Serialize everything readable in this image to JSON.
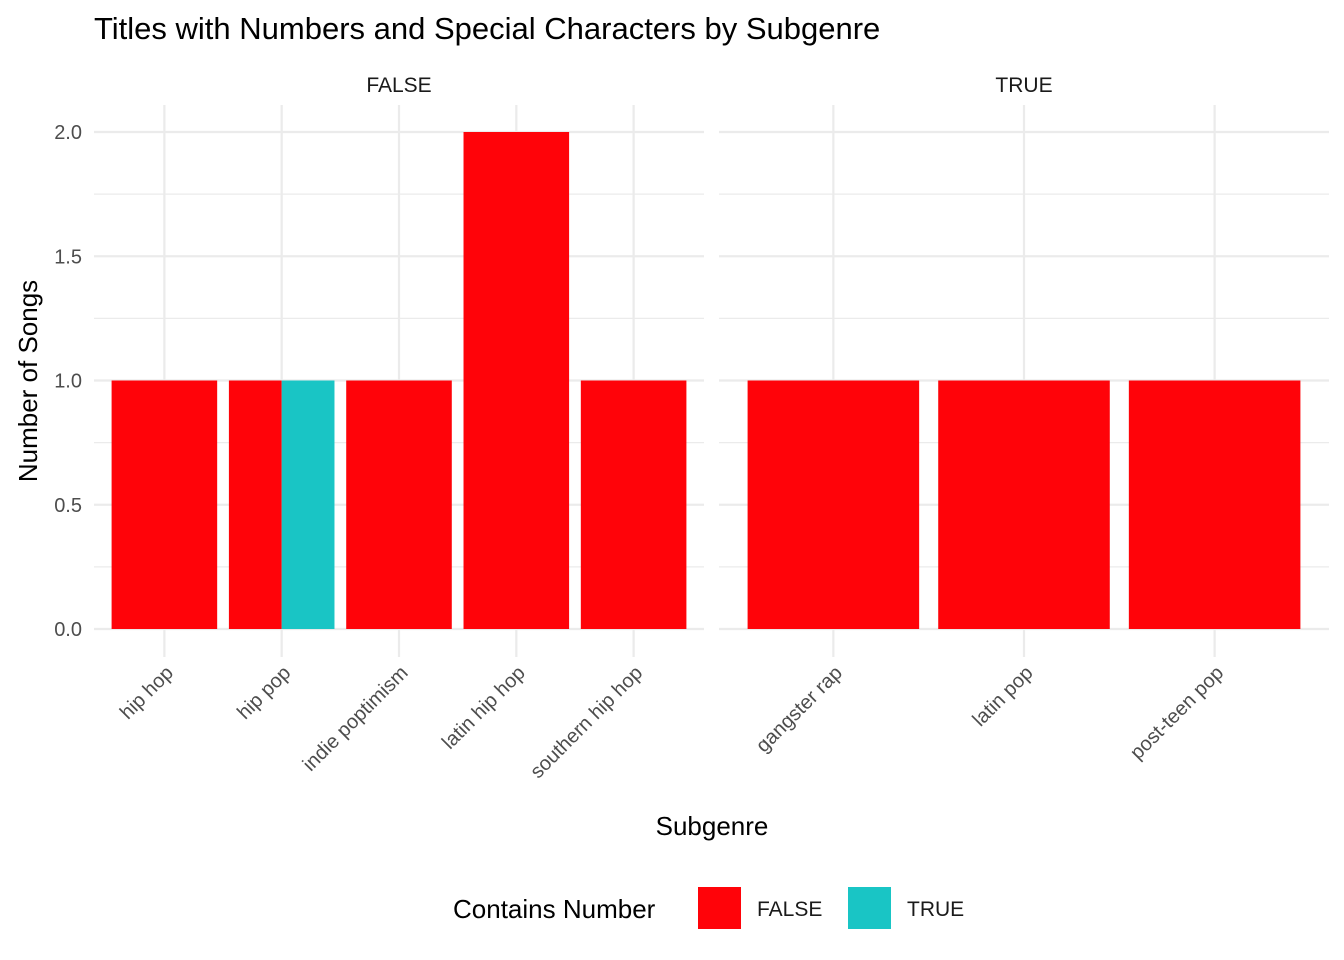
{
  "chart_data": {
    "type": "bar",
    "title": "Titles with Numbers and Special Characters by Subgenre",
    "xlabel": "Subgenre",
    "ylabel": "Number of Songs",
    "ylim": [
      0,
      2
    ],
    "yticks": [
      "0.0",
      "0.5",
      "1.0",
      "1.5",
      "2.0"
    ],
    "grid": true,
    "stacking": "dodge",
    "legend": {
      "title": "Contains Number",
      "placement": "bottom",
      "entries": [
        {
          "label": "FALSE",
          "color": "#FF0309"
        },
        {
          "label": "TRUE",
          "color": "#19C5C5"
        }
      ]
    },
    "facets": [
      {
        "label": "FALSE",
        "categories": [
          "hip hop",
          "hip pop",
          "indie poptimism",
          "latin hip hop",
          "southern hip hop"
        ],
        "series": [
          {
            "name": "FALSE",
            "values": [
              1,
              1,
              1,
              2,
              1
            ]
          },
          {
            "name": "TRUE",
            "values": [
              0,
              1,
              0,
              0,
              0
            ]
          }
        ]
      },
      {
        "label": "TRUE",
        "categories": [
          "gangster rap",
          "latin pop",
          "post-teen pop"
        ],
        "series": [
          {
            "name": "FALSE",
            "values": [
              1,
              1,
              1
            ]
          },
          {
            "name": "TRUE",
            "values": [
              0,
              0,
              0
            ]
          }
        ]
      }
    ]
  }
}
